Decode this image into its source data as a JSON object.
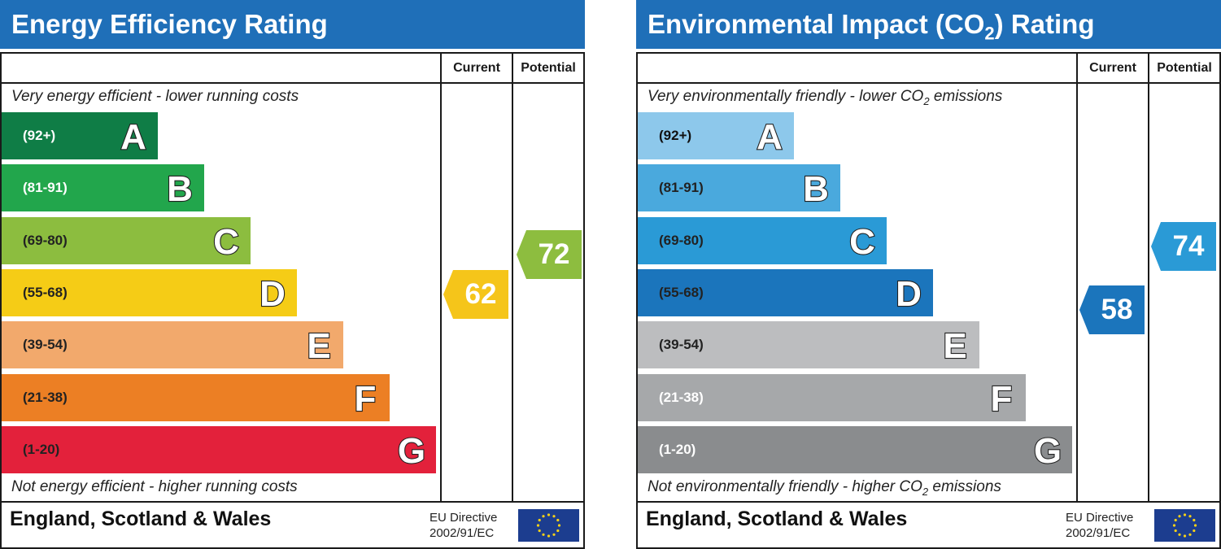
{
  "header_energy": "Energy Efficiency Rating",
  "header_env_pre": "Environmental Impact (CO",
  "header_env_sub": "2",
  "header_env_post": ") Rating",
  "col_current": "Current",
  "col_potential": "Potential",
  "energy": {
    "top_caption": "Very energy efficient - lower running costs",
    "bottom_caption": "Not energy efficient - higher running costs",
    "current": "62",
    "potential": "72",
    "current_color": "#f5c51a",
    "potential_color": "#8dbd3f"
  },
  "env": {
    "top_caption_pre": "Very environmentally friendly - lower CO",
    "top_caption_sub": "2",
    "top_caption_post": " emissions",
    "bottom_caption_pre": "Not environmentally friendly - higher CO",
    "bottom_caption_sub": "2",
    "bottom_caption_post": " emissions",
    "current": "58",
    "potential": "74",
    "current_color": "#1b75bc",
    "potential_color": "#2a9ad6"
  },
  "footer_region": "England, Scotland & Wales",
  "directive_line1": "EU Directive",
  "directive_line2": "2002/91/EC",
  "chart_data": [
    {
      "type": "bar",
      "title": "Energy Efficiency Rating",
      "categories": [
        "A",
        "B",
        "C",
        "D",
        "E",
        "F",
        "G"
      ],
      "ranges": [
        "(92+)",
        "(81-91)",
        "(69-80)",
        "(55-68)",
        "(39-54)",
        "(21-38)",
        "(1-20)"
      ],
      "colors": [
        "#0f7d46",
        "#22a64c",
        "#8cbd3f",
        "#f5cc16",
        "#f2a96c",
        "#ec7f24",
        "#e3213b"
      ],
      "range_text_colors": [
        "#ffffff",
        "#ffffff",
        "#222222",
        "#222222",
        "#222222",
        "#222222",
        "#222222"
      ],
      "current": 62,
      "potential": 72
    },
    {
      "type": "bar",
      "title": "Environmental Impact (CO2) Rating",
      "categories": [
        "A",
        "B",
        "C",
        "D",
        "E",
        "F",
        "G"
      ],
      "ranges": [
        "(92+)",
        "(81-91)",
        "(69-80)",
        "(55-68)",
        "(39-54)",
        "(21-38)",
        "(1-20)"
      ],
      "colors": [
        "#8dc8eb",
        "#4aa9dd",
        "#2a9ad6",
        "#1b75bc",
        "#bcbdbf",
        "#a6a8aa",
        "#8a8c8e"
      ],
      "range_text_colors": [
        "#111111",
        "#222222",
        "#222222",
        "#222222",
        "#222222",
        "#ffffff",
        "#ffffff"
      ],
      "current": 58,
      "potential": 74
    }
  ]
}
